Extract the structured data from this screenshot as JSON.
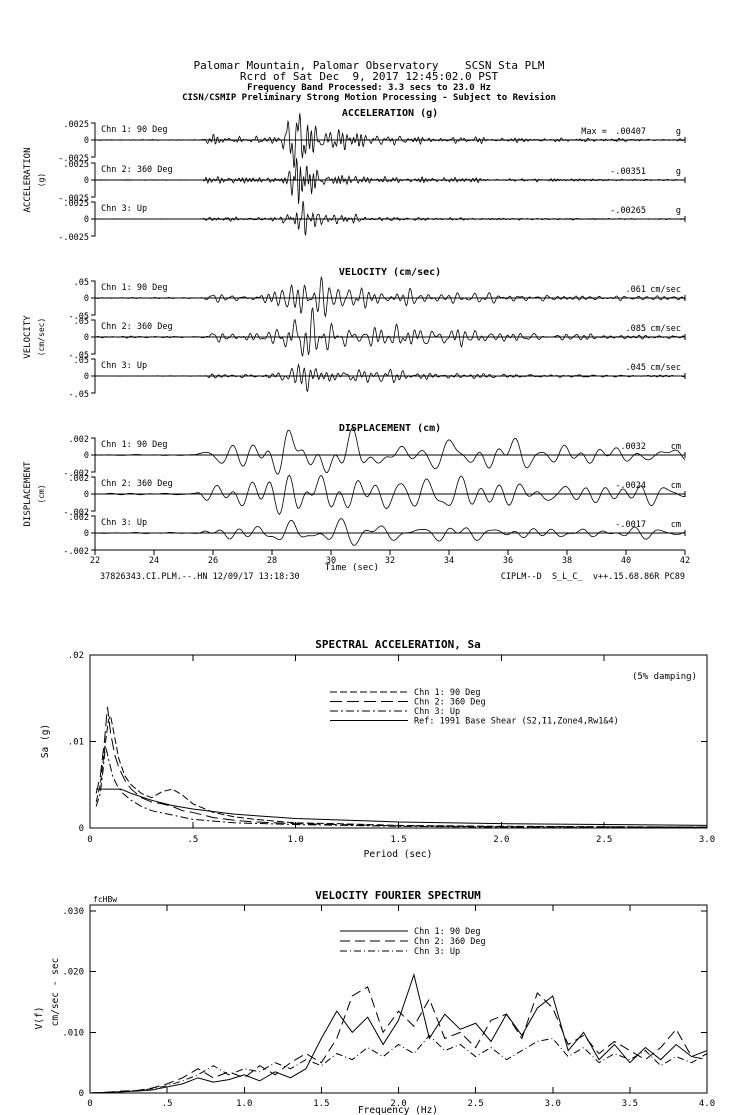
{
  "header": {
    "line1": "Palomar Mountain, Palomar Observatory    SCSN Sta PLM",
    "line2": "Rcrd of Sat Dec  9, 2017 12:45:02.0 PST",
    "line3": "Frequency Band Processed: 3.3 secs to 23.0 Hz",
    "line4": "CISN/CSMIP Preliminary Strong Motion Processing - Subject to Revision"
  },
  "chart_data": [
    {
      "id": "timeseries",
      "type": "line",
      "xlabel": "Time (sec)",
      "xlim": [
        22,
        42
      ],
      "xticks": [
        22,
        24,
        26,
        28,
        30,
        32,
        34,
        36,
        38,
        40,
        42
      ],
      "footer_left": "37826343.CI.PLM.--.HN 12/09/17 13:18:30",
      "footer_right": "CIPLM--D  S_L_C_  v++.15.68.86R PC89",
      "groups": [
        {
          "title": "ACCELERATION (g)",
          "side_label": "ACCELERATION",
          "side_unit": "(g)",
          "axis_half": 0.0025,
          "ytick_labels": [
            ".0025",
            "0",
            "-.0025"
          ],
          "fband": [
            1.8,
            9.5
          ],
          "n": 900,
          "K": 28,
          "envelope": [
            [
              22,
              0.015
            ],
            [
              25.6,
              0.015
            ],
            [
              25.8,
              0.22
            ],
            [
              26.3,
              0.16
            ],
            [
              27.2,
              0.1
            ],
            [
              28.3,
              0.18
            ],
            [
              28.6,
              0.75
            ],
            [
              28.9,
              1.0
            ],
            [
              29.3,
              0.6
            ],
            [
              29.8,
              0.32
            ],
            [
              30.5,
              0.25
            ],
            [
              31.5,
              0.2
            ],
            [
              32.5,
              0.14
            ],
            [
              34,
              0.1
            ],
            [
              36,
              0.07
            ],
            [
              39,
              0.05
            ],
            [
              42,
              0.045
            ]
          ],
          "channels": [
            {
              "label": "Chn 1: 90 Deg",
              "max_prefix": "Max = ",
              "max_value": ".00407",
              "unit": "g",
              "peak": 0.00407,
              "seed": 101
            },
            {
              "label": "Chn 2: 360 Deg",
              "max_prefix": "",
              "max_value": "-.00351",
              "unit": "g",
              "peak": 0.00351,
              "seed": 102
            },
            {
              "label": "Chn 3: Up",
              "max_prefix": "",
              "max_value": "-.00265",
              "unit": "g",
              "peak": 0.00265,
              "seed": 103
            }
          ]
        },
        {
          "title": "VELOCITY (cm/sec)",
          "side_label": "VELOCITY",
          "side_unit": "(cm/sec)",
          "axis_half": 0.05,
          "ytick_labels": [
            ".05",
            "0",
            "-.05"
          ],
          "fband": [
            1.0,
            5.5
          ],
          "n": 700,
          "K": 22,
          "envelope": [
            [
              22,
              0.02
            ],
            [
              25.7,
              0.02
            ],
            [
              25.9,
              0.18
            ],
            [
              26.5,
              0.13
            ],
            [
              27.5,
              0.12
            ],
            [
              28.3,
              0.25
            ],
            [
              28.7,
              0.7
            ],
            [
              29.0,
              1.0
            ],
            [
              29.5,
              0.65
            ],
            [
              30.2,
              0.5
            ],
            [
              31,
              0.4
            ],
            [
              32,
              0.32
            ],
            [
              33.5,
              0.24
            ],
            [
              35,
              0.17
            ],
            [
              37,
              0.12
            ],
            [
              39.5,
              0.09
            ],
            [
              42,
              0.07
            ]
          ],
          "channels": [
            {
              "label": "Chn 1: 90 Deg",
              "max_prefix": "",
              "max_value": ".061",
              "unit": "cm/sec",
              "peak": 0.061,
              "seed": 201
            },
            {
              "label": "Chn 2: 360 Deg",
              "max_prefix": "",
              "max_value": ".085",
              "unit": "cm/sec",
              "peak": 0.085,
              "seed": 202
            },
            {
              "label": "Chn 3: Up",
              "max_prefix": "",
              "max_value": ".045",
              "unit": "cm/sec",
              "peak": 0.045,
              "seed": 203
            }
          ]
        },
        {
          "title": "DISPLACEMENT (cm)",
          "side_label": "DISPLACEMENT",
          "side_unit": "(cm)",
          "axis_half": 0.002,
          "ytick_labels": [
            ".002",
            "0",
            "-.002"
          ],
          "fband": [
            0.35,
            1.8
          ],
          "n": 420,
          "K": 14,
          "envelope": [
            [
              22,
              0.02
            ],
            [
              25.4,
              0.03
            ],
            [
              25.8,
              0.2
            ],
            [
              26.5,
              0.3
            ],
            [
              27.3,
              0.35
            ],
            [
              28.2,
              0.55
            ],
            [
              28.8,
              0.9
            ],
            [
              29.3,
              1.0
            ],
            [
              30.2,
              0.75
            ],
            [
              31,
              0.6
            ],
            [
              32,
              0.52
            ],
            [
              33.5,
              0.45
            ],
            [
              35,
              0.4
            ],
            [
              37,
              0.33
            ],
            [
              39,
              0.28
            ],
            [
              42,
              0.22
            ]
          ],
          "channels": [
            {
              "label": "Chn 1: 90 Deg",
              "max_prefix": "",
              "max_value": ".0032",
              "unit": "cm",
              "peak": 0.0032,
              "seed": 301
            },
            {
              "label": "Chn 2: 360 Deg",
              "max_prefix": "",
              "max_value": "-.0024",
              "unit": "cm",
              "peak": 0.0024,
              "seed": 302
            },
            {
              "label": "Chn 3: Up",
              "max_prefix": "",
              "max_value": "-.0017",
              "unit": "cm",
              "peak": 0.0017,
              "seed": 303
            }
          ]
        }
      ]
    },
    {
      "id": "sa",
      "type": "line",
      "title": "SPECTRAL ACCELERATION, Sa",
      "annotation": "(5% damping)",
      "xlabel": "Period (sec)",
      "ylabel": "Sa (g)",
      "xlim": [
        0,
        3.0
      ],
      "ylim": [
        0,
        0.02
      ],
      "xticks": [
        {
          "v": 0,
          "label": "0"
        },
        {
          "v": 0.5,
          "label": ".5"
        },
        {
          "v": 1.0,
          "label": "1.0"
        },
        {
          "v": 1.5,
          "label": "1.5"
        },
        {
          "v": 2.0,
          "label": "2.0"
        },
        {
          "v": 2.5,
          "label": "2.5"
        },
        {
          "v": 3.0,
          "label": "3.0"
        }
      ],
      "yticks": [
        {
          "v": 0,
          "label": "0"
        },
        {
          "v": 0.01,
          "label": ".01"
        },
        {
          "v": 0.02,
          "label": ".02"
        }
      ],
      "series": [
        {
          "name": "Chn 1: 90 Deg",
          "dash": "7,3",
          "points": [
            [
              0.03,
              0.003
            ],
            [
              0.05,
              0.005
            ],
            [
              0.07,
              0.009
            ],
            [
              0.09,
              0.0125
            ],
            [
              0.1,
              0.013
            ],
            [
              0.12,
              0.0105
            ],
            [
              0.14,
              0.008
            ],
            [
              0.17,
              0.006
            ],
            [
              0.2,
              0.005
            ],
            [
              0.25,
              0.004
            ],
            [
              0.3,
              0.0035
            ],
            [
              0.35,
              0.0042
            ],
            [
              0.4,
              0.0045
            ],
            [
              0.45,
              0.0038
            ],
            [
              0.5,
              0.0028
            ],
            [
              0.6,
              0.0018
            ],
            [
              0.7,
              0.0013
            ],
            [
              0.8,
              0.001
            ],
            [
              0.9,
              0.0008
            ],
            [
              1.0,
              0.0006
            ],
            [
              1.2,
              0.0005
            ],
            [
              1.5,
              0.0003
            ],
            [
              2.0,
              0.0002
            ],
            [
              2.5,
              0.00015
            ],
            [
              3.0,
              0.0001
            ]
          ]
        },
        {
          "name": "Chn 2: 360 Deg",
          "dash": "12,5",
          "points": [
            [
              0.03,
              0.004
            ],
            [
              0.05,
              0.006
            ],
            [
              0.07,
              0.01
            ],
            [
              0.085,
              0.014
            ],
            [
              0.1,
              0.011
            ],
            [
              0.12,
              0.0085
            ],
            [
              0.14,
              0.007
            ],
            [
              0.17,
              0.0055
            ],
            [
              0.2,
              0.0045
            ],
            [
              0.25,
              0.0035
            ],
            [
              0.3,
              0.003
            ],
            [
              0.35,
              0.0028
            ],
            [
              0.4,
              0.0025
            ],
            [
              0.45,
              0.002
            ],
            [
              0.5,
              0.0018
            ],
            [
              0.6,
              0.0012
            ],
            [
              0.7,
              0.0009
            ],
            [
              0.8,
              0.0007
            ],
            [
              1.0,
              0.0005
            ],
            [
              1.5,
              0.00025
            ],
            [
              2.0,
              0.00015
            ],
            [
              3.0,
              0.0001
            ]
          ]
        },
        {
          "name": "Chn 3: Up",
          "dash": "8,3,2,3",
          "points": [
            [
              0.03,
              0.0025
            ],
            [
              0.05,
              0.004
            ],
            [
              0.065,
              0.007
            ],
            [
              0.075,
              0.0095
            ],
            [
              0.09,
              0.008
            ],
            [
              0.11,
              0.006
            ],
            [
              0.13,
              0.005
            ],
            [
              0.16,
              0.004
            ],
            [
              0.2,
              0.0032
            ],
            [
              0.25,
              0.0025
            ],
            [
              0.3,
              0.002
            ],
            [
              0.4,
              0.0015
            ],
            [
              0.5,
              0.001
            ],
            [
              0.7,
              0.0006
            ],
            [
              1.0,
              0.0004
            ],
            [
              1.5,
              0.0002
            ],
            [
              2.0,
              0.0001
            ],
            [
              3.0,
              8e-05
            ]
          ]
        },
        {
          "name": "Ref: 1991 Base Shear (S2,I1,Zone4,Rw1&4)",
          "dash": "",
          "points": [
            [
              0.03,
              0.0045
            ],
            [
              0.15,
              0.0045
            ],
            [
              0.2,
              0.004
            ],
            [
              0.3,
              0.0032
            ],
            [
              0.4,
              0.0026
            ],
            [
              0.5,
              0.0022
            ],
            [
              0.7,
              0.0016
            ],
            [
              1.0,
              0.0011
            ],
            [
              1.5,
              0.0007
            ],
            [
              2.0,
              0.0005
            ],
            [
              2.5,
              0.0004
            ],
            [
              3.0,
              0.0003
            ]
          ]
        }
      ]
    },
    {
      "id": "fourier",
      "type": "line",
      "title": "VELOCITY FOURIER SPECTRUM",
      "corner_marker": "fcHBw",
      "xlabel": "Frequency (Hz)",
      "ylabel_line1": "V(f)",
      "ylabel_line2": "cm/sec - sec",
      "xlim": [
        0,
        4.0
      ],
      "ylim": [
        0,
        0.031
      ],
      "xticks": [
        {
          "v": 0,
          "label": "0"
        },
        {
          "v": 0.5,
          "label": ".5"
        },
        {
          "v": 1.0,
          "label": "1.0"
        },
        {
          "v": 1.5,
          "label": "1.5"
        },
        {
          "v": 2.0,
          "label": "2.0"
        },
        {
          "v": 2.5,
          "label": "2.5"
        },
        {
          "v": 3.0,
          "label": "3.0"
        },
        {
          "v": 3.5,
          "label": "3.5"
        },
        {
          "v": 4.0,
          "label": "4.0"
        }
      ],
      "yticks": [
        {
          "v": 0,
          "label": "0"
        },
        {
          "v": 0.01,
          "label": ".010"
        },
        {
          "v": 0.02,
          "label": ".020"
        },
        {
          "v": 0.03,
          "label": ".030"
        }
      ],
      "series": [
        {
          "name": "Chn 1: 90 Deg",
          "dash": "",
          "x_start": 0,
          "x_step": 0.1,
          "scale": 0.001,
          "values": [
            0,
            0.1,
            0.2,
            0.3,
            0.5,
            1.0,
            1.5,
            2.5,
            1.8,
            2.2,
            3.0,
            2.0,
            3.5,
            2.5,
            4.0,
            9.0,
            13.5,
            10.0,
            12.5,
            8.0,
            12.0,
            19.5,
            9.0,
            13.0,
            10.5,
            11.5,
            8.5,
            13.0,
            9.5,
            14.0,
            16.0,
            7.0,
            10.0,
            5.5,
            8.0,
            5.0,
            7.5,
            5.5,
            8.0,
            6.0,
            7.0
          ]
        },
        {
          "name": "Chn 2: 360 Deg",
          "dash": "10,5",
          "x_start": 0,
          "x_step": 0.1,
          "scale": 0.001,
          "values": [
            0,
            0.1,
            0.3,
            0.4,
            0.8,
            1.5,
            2.5,
            4.0,
            2.5,
            3.5,
            2.5,
            4.5,
            3.0,
            5.0,
            6.5,
            5.0,
            9.0,
            16.0,
            17.5,
            10.0,
            13.5,
            11.0,
            15.5,
            9.0,
            10.0,
            7.5,
            12.0,
            13.0,
            9.0,
            16.5,
            14.0,
            8.0,
            9.5,
            6.5,
            8.5,
            7.0,
            5.5,
            7.5,
            10.5,
            6.0,
            5.5
          ]
        },
        {
          "name": "Chn 3: Up",
          "dash": "7,3,1,3",
          "x_start": 0,
          "x_step": 0.1,
          "scale": 0.001,
          "values": [
            0,
            0.1,
            0.2,
            0.4,
            0.7,
            1.2,
            2.0,
            3.0,
            4.5,
            3.0,
            4.0,
            3.5,
            5.0,
            4.0,
            5.5,
            4.5,
            6.5,
            5.5,
            7.5,
            6.0,
            8.0,
            6.5,
            9.5,
            7.0,
            8.0,
            6.0,
            7.5,
            5.5,
            7.0,
            8.5,
            9.0,
            6.0,
            7.5,
            5.0,
            6.5,
            5.5,
            7.0,
            4.5,
            6.0,
            5.0,
            6.5
          ]
        }
      ]
    }
  ]
}
